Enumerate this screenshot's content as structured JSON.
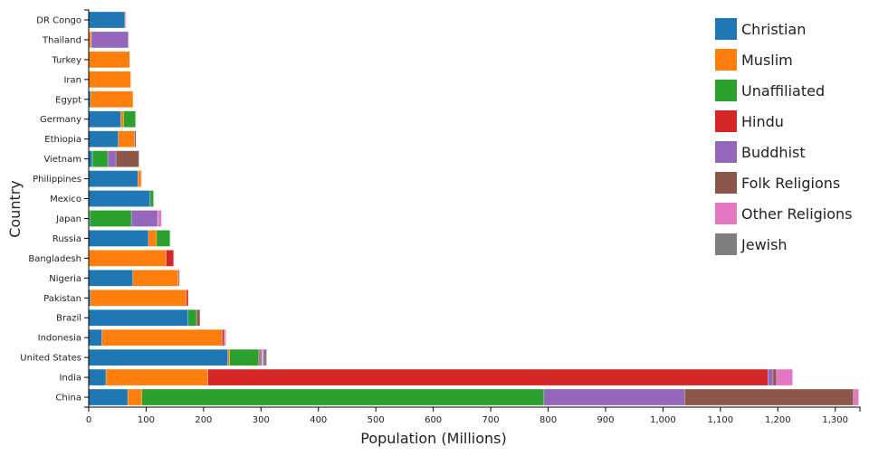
{
  "chart_data": {
    "type": "bar",
    "orientation": "horizontal",
    "stacked": true,
    "xlabel": "Population (Millions)",
    "ylabel": "Country",
    "xlim": [
      0,
      1343
    ],
    "xticks": [
      0,
      100,
      200,
      300,
      400,
      500,
      600,
      700,
      800,
      900,
      1000,
      1100,
      1200,
      1300
    ],
    "xtick_labels": [
      "0",
      "100",
      "200",
      "300",
      "400",
      "500",
      "600",
      "700",
      "800",
      "900",
      "1,000",
      "1,100",
      "1,200",
      "1,300"
    ],
    "grid": false,
    "legend_position": "top-right",
    "categories": [
      "DR Congo",
      "Thailand",
      "Turkey",
      "Iran",
      "Egypt",
      "Germany",
      "Ethiopia",
      "Vietnam",
      "Philippines",
      "Mexico",
      "Japan",
      "Russia",
      "Bangladesh",
      "Nigeria",
      "Pakistan",
      "Brazil",
      "Indonesia",
      "United States",
      "India",
      "China"
    ],
    "series": [
      {
        "name": "Christian",
        "color": "#1f77b4",
        "values": [
          63,
          0.6,
          0.3,
          0.3,
          3.2,
          56,
          51.6,
          6.3,
          85.8,
          107,
          1.6,
          104,
          0.7,
          76.8,
          3,
          173,
          23,
          242.4,
          30,
          68
        ]
      },
      {
        "name": "Muslim",
        "color": "#ff7f0e",
        "values": [
          1,
          3.7,
          71,
          73,
          74,
          4.7,
          28,
          0.2,
          5.7,
          0.1,
          0.2,
          14.2,
          134,
          78.9,
          167,
          0.1,
          209,
          3,
          177.6,
          24.7
        ]
      },
      {
        "name": "Unaffiliated",
        "color": "#2ca02c",
        "values": [
          0.5,
          0.3,
          0.3,
          0.2,
          0.1,
          21,
          0.1,
          26.8,
          0.1,
          5.8,
          72.5,
          23.6,
          0.1,
          0.6,
          0.1,
          14.7,
          0.3,
          50.8,
          0.1,
          700
        ]
      },
      {
        "name": "Hindu",
        "color": "#d62728",
        "values": [
          0,
          0.1,
          0,
          0,
          0,
          0.1,
          0,
          0,
          0,
          0,
          0,
          0,
          13,
          0,
          3.3,
          0,
          3.5,
          1.8,
          975,
          0
        ]
      },
      {
        "name": "Buddhist",
        "color": "#9467bd",
        "values": [
          0,
          64.4,
          0,
          0,
          0,
          0.2,
          0,
          14.2,
          0,
          0.1,
          45.7,
          0.1,
          0.7,
          0,
          0,
          0.2,
          1.7,
          3.6,
          9,
          245
        ]
      },
      {
        "name": "Folk Religions",
        "color": "#8c564b",
        "values": [
          0.5,
          0.3,
          0,
          0.1,
          0,
          0,
          2.7,
          40,
          0.2,
          0.2,
          0.4,
          0.2,
          0.4,
          2,
          0,
          5.8,
          0.5,
          0.6,
          6,
          294
        ]
      },
      {
        "name": "Other Religions",
        "color": "#e377c2",
        "values": [
          0.5,
          0.1,
          0,
          0.2,
          0,
          0.3,
          0.1,
          0.3,
          0.8,
          0.2,
          6.3,
          0.2,
          0.1,
          0.1,
          0.2,
          0.5,
          1,
          1.9,
          28,
          9
        ]
      },
      {
        "name": "Jewish",
        "color": "#7f7f7f",
        "values": [
          0,
          0,
          0,
          0,
          0,
          0.2,
          0,
          0,
          0,
          0,
          0,
          0.2,
          0,
          0,
          0,
          0.1,
          0,
          5.7,
          0,
          0
        ]
      }
    ]
  }
}
